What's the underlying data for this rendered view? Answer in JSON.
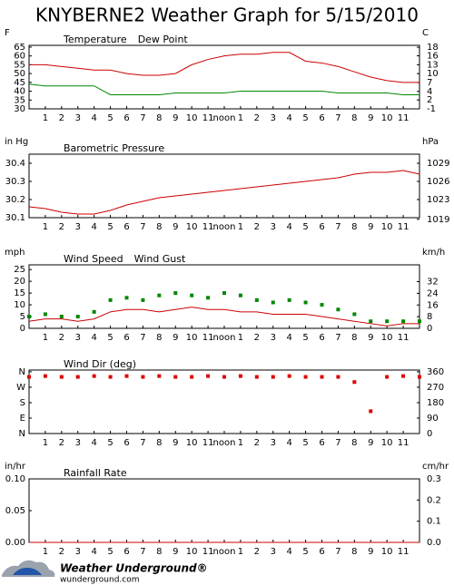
{
  "title": "KNYBERNE2 Weather Graph for 5/15/2010",
  "footer": {
    "brand": "Weather Underground®",
    "site": "wunderground.com"
  },
  "chart_data": [
    {
      "type": "line",
      "y_label": "F",
      "y2_label": "C",
      "x": [
        0,
        1,
        2,
        3,
        4,
        5,
        6,
        7,
        8,
        9,
        10,
        11,
        12,
        13,
        14,
        15,
        16,
        17,
        18,
        19,
        20,
        21,
        22,
        23,
        24
      ],
      "xlim": [
        0,
        24
      ],
      "xticks": [
        1,
        2,
        3,
        4,
        5,
        6,
        7,
        8,
        9,
        10,
        11,
        {
          "value": 12,
          "label": "noon"
        },
        {
          "value": 13,
          "label": "1"
        },
        {
          "value": 14,
          "label": "2"
        },
        {
          "value": 15,
          "label": "3"
        },
        {
          "value": 16,
          "label": "4"
        },
        {
          "value": 17,
          "label": "5"
        },
        {
          "value": 18,
          "label": "6"
        },
        {
          "value": 19,
          "label": "7"
        },
        {
          "value": 20,
          "label": "8"
        },
        {
          "value": 21,
          "label": "9"
        },
        {
          "value": 22,
          "label": "10"
        },
        {
          "value": 23,
          "label": "11"
        }
      ],
      "ylim": [
        30,
        66
      ],
      "yticks": [
        30,
        35,
        40,
        45,
        50,
        55,
        60,
        65
      ],
      "y2lim": [
        -1.1,
        18.9
      ],
      "y2ticks": [
        {
          "value": -1.1,
          "label": "-1"
        },
        {
          "value": 1.7,
          "label": "2"
        },
        {
          "value": 4.4,
          "label": "4"
        },
        {
          "value": 7.2,
          "label": "7"
        },
        10,
        {
          "value": 12.8,
          "label": "13"
        },
        {
          "value": 15.6,
          "label": "16"
        },
        {
          "value": 18.3,
          "label": "18"
        }
      ],
      "series": [
        {
          "name": "Temperature",
          "color": "#cc0000",
          "style": "line",
          "values": [
            55,
            55,
            54,
            53,
            52,
            52,
            50,
            49,
            49,
            50,
            55,
            58,
            60,
            61,
            61,
            62,
            62,
            57,
            56,
            54,
            51,
            48,
            46,
            45,
            45
          ]
        },
        {
          "name": "Dew Point",
          "color": "#008800",
          "style": "line",
          "values": [
            44,
            43,
            43,
            43,
            43,
            38,
            38,
            38,
            38,
            39,
            39,
            39,
            39,
            40,
            40,
            40,
            40,
            40,
            40,
            39,
            39,
            39,
            39,
            38,
            38
          ]
        }
      ]
    },
    {
      "type": "line",
      "y_label": "in Hg",
      "y2_label": "hPa",
      "x": [
        0,
        1,
        2,
        3,
        4,
        5,
        6,
        7,
        8,
        9,
        10,
        11,
        12,
        13,
        14,
        15,
        16,
        17,
        18,
        19,
        20,
        21,
        22,
        23,
        24
      ],
      "xlim": [
        0,
        24
      ],
      "xticks": [
        1,
        2,
        3,
        4,
        5,
        6,
        7,
        8,
        9,
        10,
        11,
        {
          "value": 12,
          "label": "noon"
        },
        {
          "value": 13,
          "label": "1"
        },
        {
          "value": 14,
          "label": "2"
        },
        {
          "value": 15,
          "label": "3"
        },
        {
          "value": 16,
          "label": "4"
        },
        {
          "value": 17,
          "label": "5"
        },
        {
          "value": 18,
          "label": "6"
        },
        {
          "value": 19,
          "label": "7"
        },
        {
          "value": 20,
          "label": "8"
        },
        {
          "value": 21,
          "label": "9"
        },
        {
          "value": 22,
          "label": "10"
        },
        {
          "value": 23,
          "label": "11"
        }
      ],
      "ylim": [
        30.1,
        30.45
      ],
      "yticks": [
        30.1,
        30.2,
        30.3,
        30.4
      ],
      "y2lim": [
        1019.3,
        1031.2
      ],
      "y2ticks": [
        1019,
        {
          "value": 1022.7,
          "label": "1023"
        },
        {
          "value": 1026.1,
          "label": "1026"
        },
        {
          "value": 1029.5,
          "label": "1029"
        }
      ],
      "series": [
        {
          "name": "Barometric Pressure",
          "color": "#cc0000",
          "style": "line",
          "values": [
            30.16,
            30.15,
            30.13,
            30.12,
            30.12,
            30.14,
            30.17,
            30.19,
            30.21,
            30.22,
            30.23,
            30.24,
            30.25,
            30.26,
            30.27,
            30.28,
            30.29,
            30.3,
            30.31,
            30.32,
            30.34,
            30.35,
            30.35,
            30.36,
            30.34
          ]
        }
      ]
    },
    {
      "type": "line",
      "y_label": "mph",
      "y2_label": "km/h",
      "x": [
        0,
        1,
        2,
        3,
        4,
        5,
        6,
        7,
        8,
        9,
        10,
        11,
        12,
        13,
        14,
        15,
        16,
        17,
        18,
        19,
        20,
        21,
        22,
        23,
        24
      ],
      "xlim": [
        0,
        24
      ],
      "xticks": [
        1,
        2,
        3,
        4,
        5,
        6,
        7,
        8,
        9,
        10,
        11,
        {
          "value": 12,
          "label": "noon"
        },
        {
          "value": 13,
          "label": "1"
        },
        {
          "value": 14,
          "label": "2"
        },
        {
          "value": 15,
          "label": "3"
        },
        {
          "value": 16,
          "label": "4"
        },
        {
          "value": 17,
          "label": "5"
        },
        {
          "value": 18,
          "label": "6"
        },
        {
          "value": 19,
          "label": "7"
        },
        {
          "value": 20,
          "label": "8"
        },
        {
          "value": 21,
          "label": "9"
        },
        {
          "value": 22,
          "label": "10"
        },
        {
          "value": 23,
          "label": "11"
        }
      ],
      "ylim": [
        0,
        27
      ],
      "yticks": [
        0,
        5,
        10,
        15,
        20,
        25
      ],
      "y2lim": [
        0,
        43.5
      ],
      "y2ticks": [
        0,
        8,
        16,
        24,
        32
      ],
      "series": [
        {
          "name": "Wind Speed",
          "color": "#cc0000",
          "style": "line",
          "values": [
            3,
            4,
            4,
            3,
            4,
            7,
            8,
            8,
            7,
            8,
            9,
            8,
            8,
            7,
            7,
            6,
            6,
            6,
            5,
            4,
            3,
            2,
            1,
            2,
            2
          ]
        },
        {
          "name": "Wind Gust",
          "color": "#008800",
          "style": "points",
          "values": [
            5,
            6,
            5,
            5,
            7,
            12,
            13,
            12,
            14,
            15,
            14,
            13,
            15,
            14,
            12,
            11,
            12,
            11,
            10,
            8,
            6,
            3,
            3,
            3,
            3
          ]
        }
      ]
    },
    {
      "type": "line",
      "y_label": null,
      "y2_label": null,
      "x": [
        0,
        1,
        2,
        3,
        4,
        5,
        6,
        7,
        8,
        9,
        10,
        11,
        12,
        13,
        14,
        15,
        16,
        17,
        18,
        19,
        20,
        21,
        22,
        23,
        24
      ],
      "xlim": [
        0,
        24
      ],
      "xticks": [
        1,
        2,
        3,
        4,
        5,
        6,
        7,
        8,
        9,
        10,
        11,
        {
          "value": 12,
          "label": "noon"
        },
        {
          "value": 13,
          "label": "1"
        },
        {
          "value": 14,
          "label": "2"
        },
        {
          "value": 15,
          "label": "3"
        },
        {
          "value": 16,
          "label": "4"
        },
        {
          "value": 17,
          "label": "5"
        },
        {
          "value": 18,
          "label": "6"
        },
        {
          "value": 19,
          "label": "7"
        },
        {
          "value": 20,
          "label": "8"
        },
        {
          "value": 21,
          "label": "9"
        },
        {
          "value": 22,
          "label": "10"
        },
        {
          "value": 23,
          "label": "11"
        }
      ],
      "ylim": [
        0,
        370
      ],
      "ytick_color": "#cc0000",
      "yticks": [
        {
          "value": 0,
          "label": "N"
        },
        {
          "value": 90,
          "label": "E"
        },
        {
          "value": 180,
          "label": "S"
        },
        {
          "value": 270,
          "label": "W"
        },
        {
          "value": 360,
          "label": "N"
        }
      ],
      "y2lim": [
        0,
        370
      ],
      "y2ticks": [
        0,
        90,
        180,
        270,
        360
      ],
      "series": [
        {
          "name": "Wind Dir (deg)",
          "color": "#dd0000",
          "style": "points",
          "values": [
            330,
            335,
            330,
            330,
            335,
            330,
            335,
            330,
            335,
            330,
            330,
            335,
            330,
            335,
            330,
            330,
            335,
            330,
            330,
            330,
            300,
            130,
            330,
            335,
            330
          ]
        }
      ]
    },
    {
      "type": "line",
      "y_label": "in/hr",
      "y2_label": "cm/hr",
      "x": [
        0,
        1,
        2,
        3,
        4,
        5,
        6,
        7,
        8,
        9,
        10,
        11,
        12,
        13,
        14,
        15,
        16,
        17,
        18,
        19,
        20,
        21,
        22,
        23,
        24
      ],
      "xlim": [
        0,
        24
      ],
      "xticks": [
        1,
        2,
        3,
        4,
        5,
        6,
        7,
        8,
        9,
        10,
        11,
        {
          "value": 12,
          "label": "noon"
        },
        {
          "value": 13,
          "label": "1"
        },
        {
          "value": 14,
          "label": "2"
        },
        {
          "value": 15,
          "label": "3"
        },
        {
          "value": 16,
          "label": "4"
        },
        {
          "value": 17,
          "label": "5"
        },
        {
          "value": 18,
          "label": "6"
        },
        {
          "value": 19,
          "label": "7"
        },
        {
          "value": 20,
          "label": "8"
        },
        {
          "value": 21,
          "label": "9"
        },
        {
          "value": 22,
          "label": "10"
        },
        {
          "value": 23,
          "label": "11"
        }
      ],
      "ylim": [
        0,
        0.1
      ],
      "yticks": [
        {
          "value": 0,
          "label": "0.00"
        },
        {
          "value": 0.05,
          "label": "0.05"
        },
        {
          "value": 0.1,
          "label": "0.10"
        }
      ],
      "y2lim": [
        0,
        0.3
      ],
      "y2ticks": [
        {
          "value": 0,
          "label": "0.0"
        },
        0.1,
        0.2,
        0.3
      ],
      "series": [
        {
          "name": "Rainfall Rate",
          "color": "#cc0000",
          "style": "line",
          "values": [
            0,
            0,
            0,
            0,
            0,
            0,
            0,
            0,
            0,
            0,
            0,
            0,
            0,
            0,
            0,
            0,
            0,
            0,
            0,
            0,
            0,
            0,
            0,
            0,
            0
          ]
        }
      ]
    }
  ]
}
